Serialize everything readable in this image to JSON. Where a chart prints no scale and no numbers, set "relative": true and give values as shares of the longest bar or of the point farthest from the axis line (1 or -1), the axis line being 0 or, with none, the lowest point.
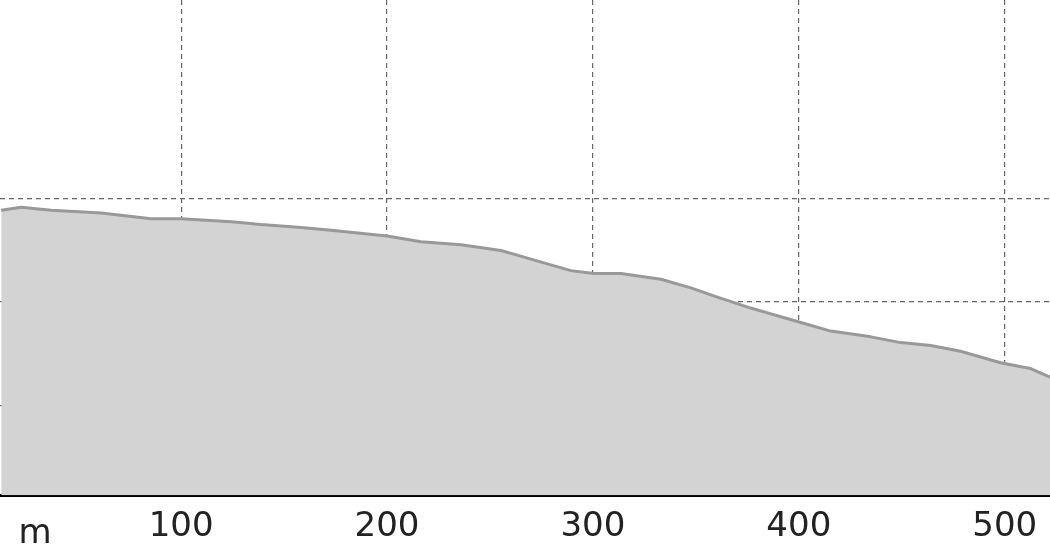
{
  "chart_data": {
    "type": "area",
    "relative": true,
    "xlabel": "m",
    "xlim": [
      12,
      522
    ],
    "xticks": [
      100,
      200,
      300,
      400,
      500
    ],
    "grid": true,
    "legend": false,
    "marker": "none",
    "x": [
      12.6,
      22.3,
      36.9,
      61.2,
      85.4,
      100,
      124.3,
      138.8,
      158.3,
      172.8,
      200,
      216.5,
      235.9,
      255.3,
      269.9,
      289.3,
      300.5,
      313.6,
      333,
      347.6,
      359.7,
      376.7,
      391.3,
      401,
      415.5,
      435,
      449.5,
      464.1,
      478.6,
      498,
      512.6,
      522
    ],
    "series": [
      {
        "color": "#d3d3d3",
        "values": [
          0.99,
          1,
          0.99,
          0.98,
          0.96,
          0.96,
          0.95,
          0.94,
          0.93,
          0.92,
          0.9,
          0.88,
          0.87,
          0.85,
          0.82,
          0.78,
          0.77,
          0.77,
          0.75,
          0.72,
          0.69,
          0.65,
          0.62,
          0.6,
          0.57,
          0.55,
          0.53,
          0.52,
          0.5,
          0.46,
          0.44,
          0.41
        ]
      }
    ]
  }
}
